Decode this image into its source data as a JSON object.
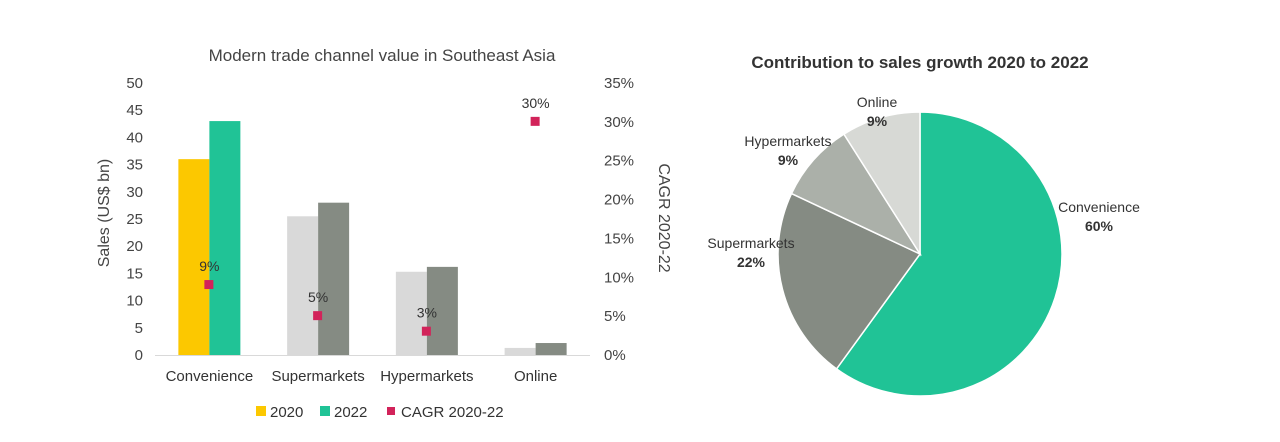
{
  "chart_data": [
    {
      "type": "bar",
      "title": "Modern trade channel value in Southeast Asia",
      "categories": [
        "Convenience",
        "Supermarkets",
        "Hypermarkets",
        "Online"
      ],
      "ylabel": "Sales (US$ bn)",
      "y2label": "CAGR 2020-22",
      "ylim": [
        0,
        50
      ],
      "yticks": [
        0,
        5,
        10,
        15,
        20,
        25,
        30,
        35,
        40,
        45,
        50
      ],
      "y2lim": [
        0,
        35
      ],
      "y2ticks": [
        "0%",
        "5%",
        "10%",
        "15%",
        "20%",
        "25%",
        "30%",
        "35%"
      ],
      "series": [
        {
          "name": "2020",
          "axis": "left",
          "kind": "bar",
          "values": [
            36,
            25.5,
            15.3,
            1.3
          ],
          "colors": [
            "#FCC800",
            "#D9D9D9",
            "#D9D9D9",
            "#D9D9D9"
          ]
        },
        {
          "name": "2022",
          "axis": "left",
          "kind": "bar",
          "values": [
            43,
            28,
            16.2,
            2.2
          ],
          "colors": [
            "#20C396",
            "#858B83",
            "#858B83",
            "#858B83"
          ]
        },
        {
          "name": "CAGR 2020-22",
          "axis": "right",
          "kind": "marker",
          "values": [
            9,
            5,
            3,
            30
          ],
          "labels": [
            "9%",
            "5%",
            "3%",
            "30%"
          ],
          "color": "#D2235A"
        }
      ],
      "legend": [
        {
          "label": "2020",
          "color": "#FCC800"
        },
        {
          "label": "2022",
          "color": "#20C396"
        },
        {
          "label": "CAGR 2020-22",
          "color": "#D2235A"
        }
      ],
      "legend_position": "bottom",
      "grid": false
    },
    {
      "type": "pie",
      "title": "Contribution to sales growth 2020 to 2022",
      "slices": [
        {
          "label": "Convenience",
          "value": 60,
          "display": "60%",
          "color": "#20C396"
        },
        {
          "label": "Supermarkets",
          "value": 22,
          "display": "22%",
          "color": "#858B83"
        },
        {
          "label": "Hypermarkets",
          "value": 9,
          "display": "9%",
          "color": "#ABB0A9"
        },
        {
          "label": "Online",
          "value": 9,
          "display": "9%",
          "color": "#D7D9D5"
        }
      ],
      "start_angle": "12 o'clock, clockwise"
    }
  ]
}
